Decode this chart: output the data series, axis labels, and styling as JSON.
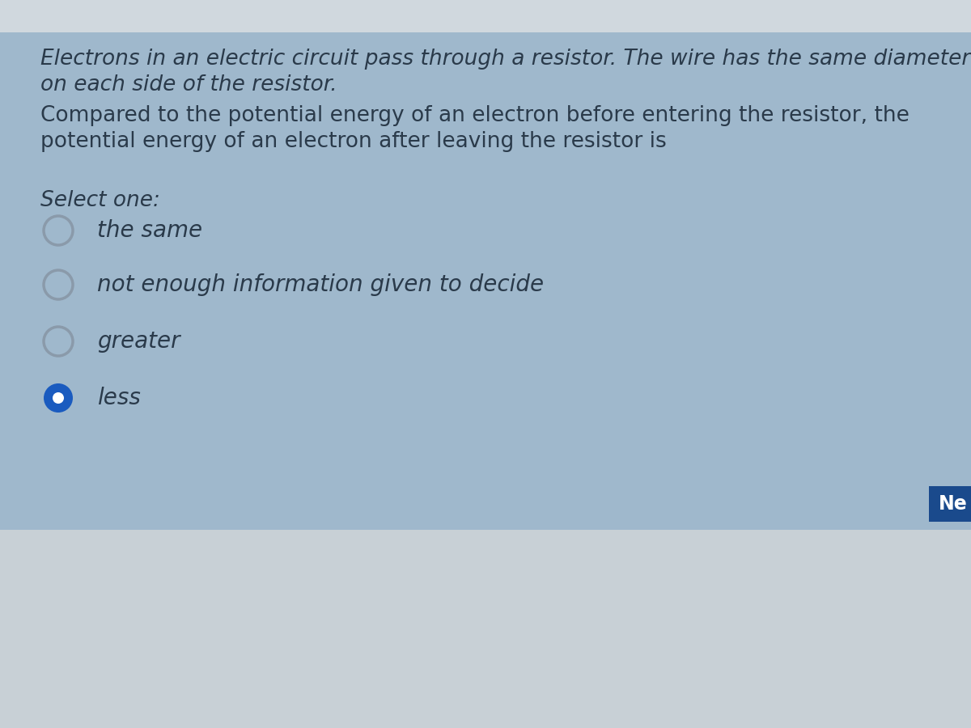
{
  "bg_main": "#9fb8cc",
  "bg_top_bar": "#d0d8de",
  "bg_bottom": "#c8d0d6",
  "text_color": "#2a3a4a",
  "italic_text_1": "Electrons in an electric circuit pass through a resistor. The wire has the same diameter",
  "italic_text_2": "on each side of the resistor.",
  "normal_text_1": "Compared to the potential energy of an electron before entering the resistor, the",
  "normal_text_2": "potential energy of an electron after leaving the resistor is",
  "select_one_label": "Select one:",
  "options": [
    "the same",
    "not enough information given to decide",
    "greater",
    "less"
  ],
  "selected_index": 3,
  "circle_color": "#8a9aaa",
  "selected_fill": "#1a5bbf",
  "selected_ring": "#1a5bbf",
  "next_btn_color": "#1a4a8c",
  "next_btn_text": "Ne",
  "font_size_body": 19,
  "font_size_options": 20,
  "font_size_select": 19
}
